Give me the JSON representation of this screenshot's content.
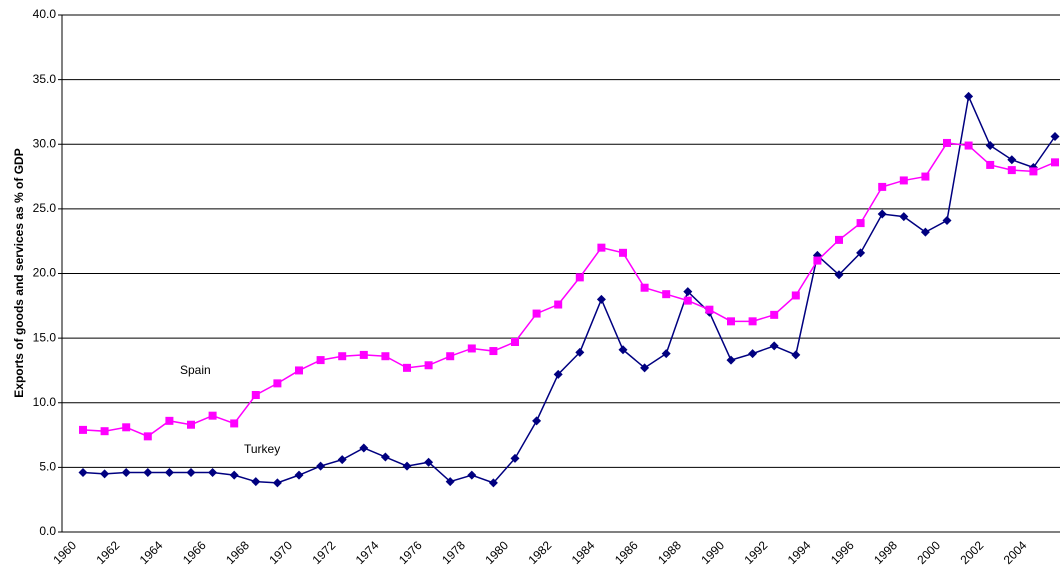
{
  "chart_data": {
    "type": "line",
    "y_label": "Exports of goods and services as % of GDP",
    "categories": [
      "1960",
      null,
      "1962",
      null,
      "1964",
      null,
      "1966",
      null,
      "1968",
      null,
      "1970",
      null,
      "1972",
      null,
      "1974",
      null,
      "1976",
      null,
      "1978",
      null,
      "1980",
      null,
      "1982",
      null,
      "1984",
      null,
      "1986",
      null,
      "1988",
      null,
      "1990",
      null,
      "1992",
      null,
      "1994",
      null,
      "1996",
      null,
      "1998",
      null,
      "2000",
      null,
      "2002",
      null,
      "2004",
      null
    ],
    "series": [
      {
        "name": "Turkey",
        "color": "#000080",
        "marker": "diamond",
        "values": [
          4.6,
          4.5,
          4.6,
          4.6,
          4.6,
          4.6,
          4.6,
          4.4,
          3.9,
          3.8,
          4.4,
          5.1,
          5.6,
          6.5,
          5.8,
          5.1,
          5.4,
          3.9,
          4.4,
          3.8,
          5.7,
          8.6,
          12.2,
          13.9,
          18.0,
          14.1,
          12.7,
          13.8,
          18.6,
          17.0,
          13.3,
          13.8,
          14.4,
          13.7,
          21.4,
          19.9,
          21.6,
          24.6,
          24.4,
          23.2,
          24.1,
          33.7,
          29.9,
          28.8,
          28.2,
          30.6
        ]
      },
      {
        "name": "Spain",
        "color": "#ff00ff",
        "marker": "square",
        "values": [
          7.9,
          7.8,
          8.1,
          7.4,
          8.6,
          8.3,
          9.0,
          8.4,
          10.6,
          11.5,
          12.5,
          13.3,
          13.6,
          13.7,
          13.6,
          12.7,
          12.9,
          13.6,
          14.2,
          14.0,
          14.7,
          16.9,
          17.6,
          19.7,
          22.0,
          21.6,
          18.9,
          18.4,
          17.9,
          17.2,
          16.3,
          16.3,
          16.8,
          18.3,
          21.0,
          22.6,
          23.9,
          26.7,
          27.2,
          27.5,
          30.1,
          29.9,
          28.4,
          28.0,
          27.9,
          28.6
        ]
      }
    ],
    "ylim": [
      0,
      40
    ],
    "yticks": [
      {
        "value": 0,
        "label": "0.0"
      },
      {
        "value": 5,
        "label": "5.0"
      },
      {
        "value": 10,
        "label": "10.0"
      },
      {
        "value": 15,
        "label": "15.0"
      },
      {
        "value": 20,
        "label": "20.0"
      },
      {
        "value": 25,
        "label": "25.0"
      },
      {
        "value": 30,
        "label": "30.0"
      },
      {
        "value": 35,
        "label": "35.0"
      },
      {
        "value": 40,
        "label": "40.0"
      }
    ],
    "grid": true
  }
}
